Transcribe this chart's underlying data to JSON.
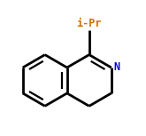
{
  "bg_color": "#ffffff",
  "bond_color": "#000000",
  "label_iPr_color": "#cc7000",
  "label_N_color": "#0000cc",
  "label_iPr": "i-Pr",
  "label_N": "N",
  "figsize": [
    1.65,
    1.53
  ],
  "dpi": 100
}
